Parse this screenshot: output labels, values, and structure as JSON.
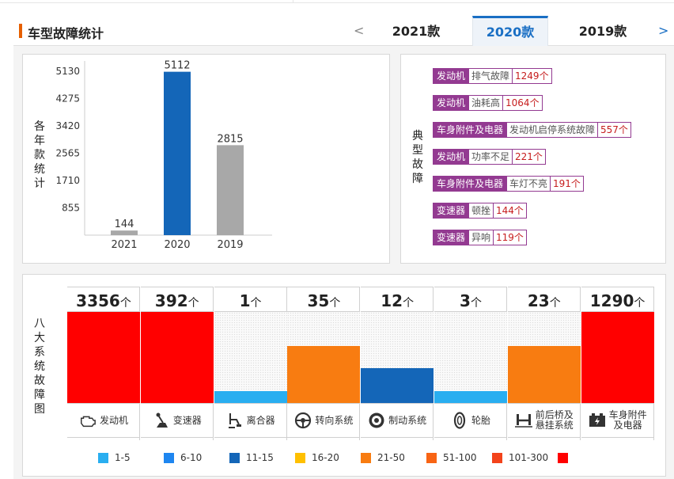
{
  "header": {
    "title": "车型故障统计",
    "prev_arrow": "<",
    "next_arrow": ">",
    "tabs": [
      {
        "label": "2021款",
        "active": false
      },
      {
        "label": "2020款",
        "active": true
      },
      {
        "label": "2019款",
        "active": false
      }
    ]
  },
  "year_chart": {
    "ylabel": "各年款统计",
    "chart_data": {
      "type": "bar",
      "categories": [
        "2021",
        "2020",
        "2019"
      ],
      "values": [
        144,
        5112,
        2815
      ],
      "yticks": [
        855,
        1710,
        2565,
        3420,
        4275,
        5130
      ],
      "ylim": [
        0,
        5400
      ],
      "bar_colors": [
        "#a8a8a8",
        "#1466b8",
        "#a8a8a8"
      ]
    }
  },
  "typical_faults": {
    "label": "典型故障",
    "items": [
      {
        "category": "发动机",
        "issue": "排气故障",
        "count": "1249个"
      },
      {
        "category": "发动机",
        "issue": "油耗高",
        "count": "1064个"
      },
      {
        "category": "车身附件及电器",
        "issue": "发动机启停系统故障",
        "count": "557个"
      },
      {
        "category": "发动机",
        "issue": "功率不足",
        "count": "221个"
      },
      {
        "category": "车身附件及电器",
        "issue": "车灯不亮",
        "count": "191个"
      },
      {
        "category": "变速器",
        "issue": "顿挫",
        "count": "144个"
      },
      {
        "category": "变速器",
        "issue": "异响",
        "count": "119个"
      }
    ]
  },
  "systems": {
    "label": "八大系统故障图",
    "unit": "个",
    "items": [
      {
        "count": "3356",
        "name": "发动机",
        "icon": "engine-icon",
        "level": 1.0,
        "color": "#ff0000"
      },
      {
        "count": "392",
        "name": "变速器",
        "icon": "gear-shift-icon",
        "level": 1.0,
        "color": "#ff0000"
      },
      {
        "count": "1",
        "name": "离合器",
        "icon": "clutch-pedal-icon",
        "level": 0.13,
        "color": "#29aef0"
      },
      {
        "count": "35",
        "name": "转向系统",
        "icon": "steering-wheel-icon",
        "level": 0.63,
        "color": "#f87c11"
      },
      {
        "count": "12",
        "name": "制动系统",
        "icon": "brake-disc-icon",
        "level": 0.38,
        "color": "#1466b8"
      },
      {
        "count": "3",
        "name": "轮胎",
        "icon": "tire-icon",
        "level": 0.13,
        "color": "#29aef0"
      },
      {
        "count": "23",
        "name": "前后桥及悬挂系统",
        "name_line1": "前后桥及",
        "name_line2": "悬挂系统",
        "icon": "axle-suspension-icon",
        "level": 0.63,
        "color": "#f87c11"
      },
      {
        "count": "1290",
        "name": "车身附件及电器",
        "name_line1": "车身附件",
        "name_line2": "及电器",
        "icon": "battery-icon",
        "level": 1.0,
        "color": "#ff0000"
      }
    ]
  },
  "legend": [
    {
      "label": "1-5",
      "color": "#29aef0"
    },
    {
      "label": "6-10",
      "color": "#1e86f0"
    },
    {
      "label": "11-15",
      "color": "#1466b8"
    },
    {
      "label": "16-20",
      "color": "#ffc000"
    },
    {
      "label": "21-50",
      "color": "#f87c11"
    },
    {
      "label": "51-100",
      "color": "#f86414"
    },
    {
      "label": "101-300",
      "color": "#f3431b"
    },
    {
      "label": "",
      "color": "#ff0000"
    }
  ]
}
